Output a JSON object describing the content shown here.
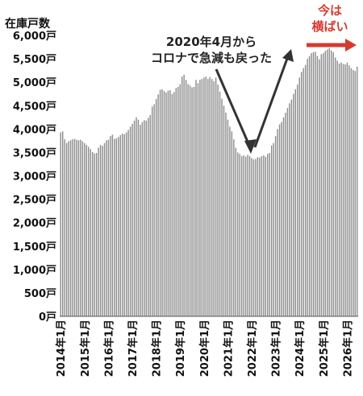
{
  "chart_data": {
    "type": "bar",
    "ylabel": "在庫戸数",
    "ylim": [
      0,
      6000
    ],
    "y_ticks": [
      "0戸",
      "500戸",
      "1,000戸",
      "1,500戸",
      "2,000戸",
      "2,500戸",
      "3,000戸",
      "3,500戸",
      "4,000戸",
      "4,500戸",
      "5,000戸",
      "5,500戸",
      "6,000戸"
    ],
    "x_labels": [
      "2014年1月",
      "2015年1月",
      "2016年1月",
      "2017年1月",
      "2018年1月",
      "2019年1月",
      "2020年1月",
      "2021年1月",
      "2022年1月",
      "2023年1月",
      "2024年1月",
      "2025年1月",
      "2026年1月"
    ],
    "start_month": "2014-01",
    "grid": "none",
    "bar_color": "#8c8c8c",
    "values": [
      3930,
      3950,
      3780,
      3700,
      3740,
      3760,
      3780,
      3790,
      3770,
      3760,
      3770,
      3740,
      3700,
      3660,
      3620,
      3570,
      3510,
      3480,
      3490,
      3600,
      3660,
      3640,
      3700,
      3760,
      3770,
      3850,
      3880,
      3790,
      3800,
      3830,
      3870,
      3900,
      3890,
      3930,
      3980,
      4050,
      4110,
      4180,
      4250,
      4200,
      4090,
      4150,
      4190,
      4180,
      4240,
      4300,
      4480,
      4530,
      4640,
      4740,
      4840,
      4850,
      4810,
      4780,
      4820,
      4830,
      4750,
      4790,
      4880,
      4900,
      4960,
      5120,
      5160,
      5050,
      4960,
      4930,
      4890,
      4900,
      5050,
      4980,
      5050,
      5070,
      5100,
      5120,
      5070,
      5110,
      5070,
      5020,
      5100,
      4950,
      4800,
      4650,
      4500,
      4350,
      4200,
      4050,
      3950,
      3780,
      3600,
      3500,
      3470,
      3420,
      3440,
      3410,
      3450,
      3420,
      3380,
      3350,
      3360,
      3400,
      3390,
      3420,
      3440,
      3410,
      3470,
      3490,
      3650,
      3700,
      3850,
      4000,
      4100,
      4150,
      4250,
      4350,
      4450,
      4550,
      4630,
      4750,
      4850,
      4950,
      5100,
      5220,
      5300,
      5370,
      5500,
      5560,
      5620,
      5640,
      5650,
      5560,
      5490,
      5600,
      5620,
      5670,
      5700,
      5730,
      5680,
      5640,
      5530,
      5460,
      5400,
      5420,
      5390,
      5380,
      5420,
      5360,
      5300,
      5260,
      5240,
      5330
    ]
  },
  "annotations": {
    "covid_note_line1": "2020年4月から",
    "covid_note_line2": "コロナで急減も戻った",
    "now_note_line1": "今は",
    "now_note_line2": "横ばい",
    "arrow_color": "#333333",
    "highlight_color": "#d63a2e"
  }
}
